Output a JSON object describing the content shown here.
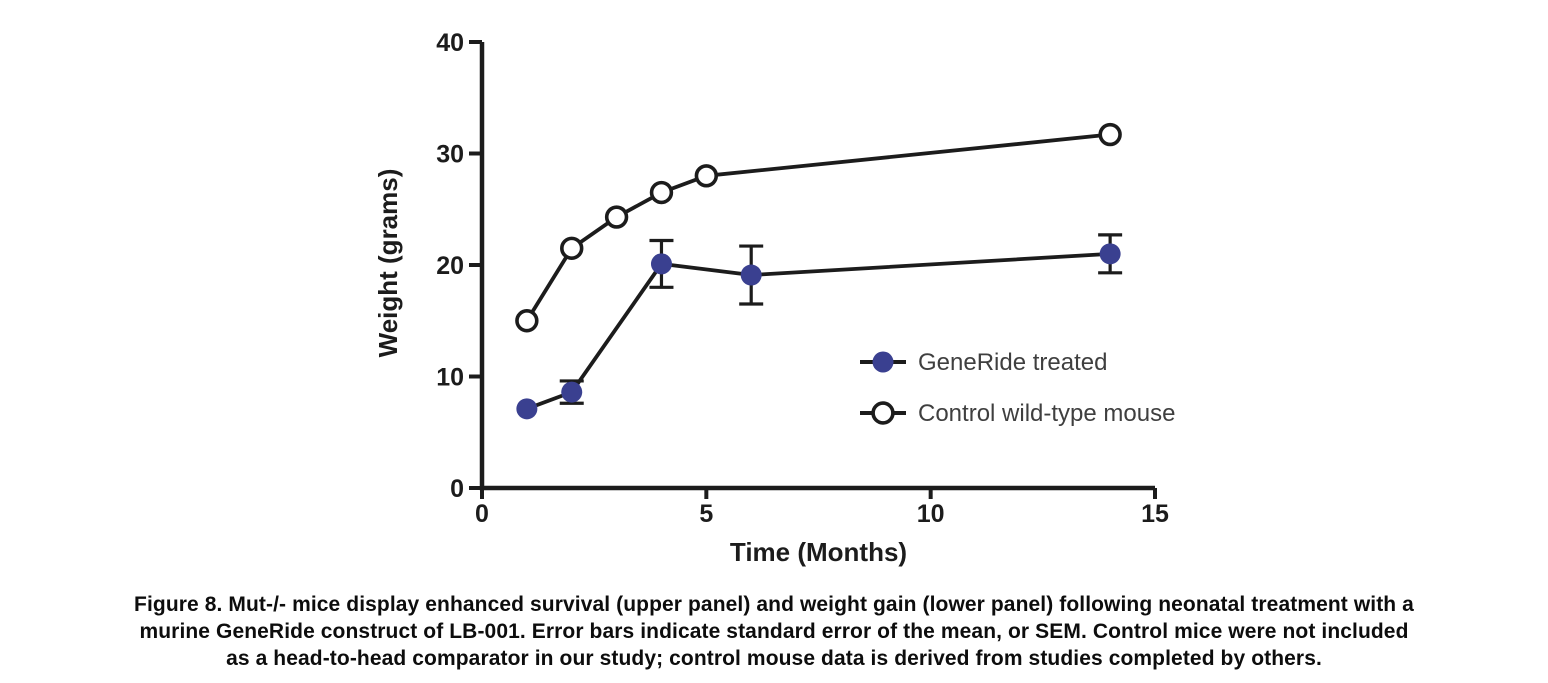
{
  "figure": {
    "caption_lines": [
      "Figure 8. Mut-/- mice display enhanced survival (upper panel) and weight gain (lower panel) following neonatal treatment with a",
      "murine GeneRide construct of LB-001. Error bars indicate standard error of the mean, or SEM. Control mice were not included",
      "as a head-to-head comparator in our study; control mouse data is derived from studies completed by others."
    ]
  },
  "chart_data": {
    "type": "line",
    "title": "",
    "xlabel": "Time (Months)",
    "ylabel": "Weight (grams)",
    "xlim": [
      0,
      15
    ],
    "ylim": [
      0,
      40
    ],
    "x_ticks": [
      0,
      5,
      10,
      15
    ],
    "y_ticks": [
      0,
      10,
      20,
      30,
      40
    ],
    "grid": false,
    "legend_position": "inside-right-middle",
    "error_bar_note": "SEM",
    "colors": {
      "ink": "#1c1c1c",
      "generide_fill": "#3a4090",
      "open_marker_fill": "#ffffff",
      "legend_text": "#3f3f3f"
    },
    "series": [
      {
        "name": "GeneRide treated",
        "marker": "filled-circle",
        "x": [
          1,
          2,
          4,
          6,
          14
        ],
        "y": [
          7.1,
          8.6,
          20.1,
          19.1,
          21.0
        ],
        "sem": [
          0,
          1.0,
          2.1,
          2.6,
          1.7
        ]
      },
      {
        "name": "Control wild-type mouse",
        "marker": "open-circle",
        "x": [
          1,
          2,
          3,
          4,
          5,
          14
        ],
        "y": [
          15.0,
          21.5,
          24.3,
          26.5,
          28.0,
          31.7
        ],
        "sem": [
          0,
          0,
          0,
          0,
          0,
          0
        ]
      }
    ]
  }
}
